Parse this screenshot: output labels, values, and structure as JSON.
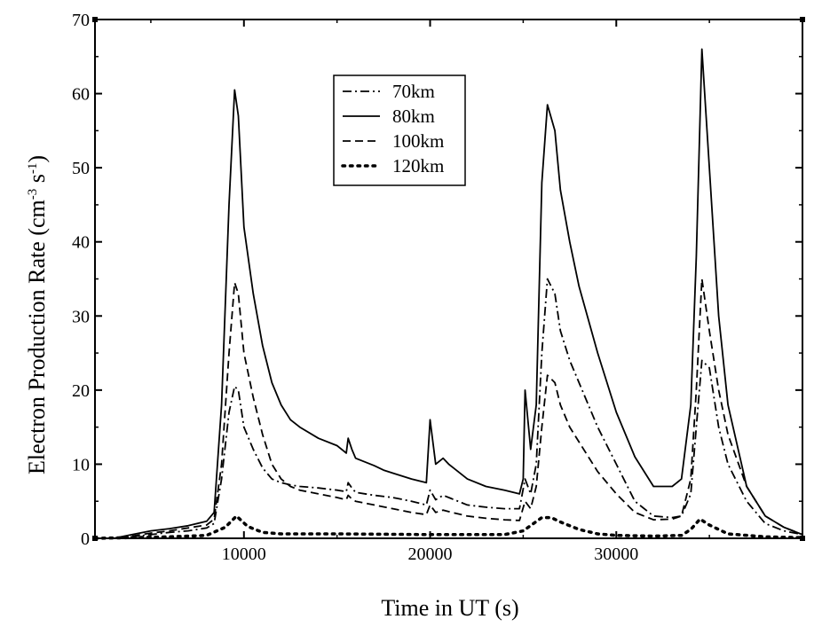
{
  "chart_data": {
    "type": "line",
    "title": "",
    "xlabel": "Time in UT (s)",
    "ylabel_main": "Electron Production Rate (cm",
    "ylabel_sup1": "-3",
    "ylabel_mid": " s",
    "ylabel_sup2": "-1",
    "ylabel_end": ")",
    "xlim": [
      2000,
      40000
    ],
    "ylim": [
      0,
      70
    ],
    "xticks": [
      10000,
      20000,
      30000
    ],
    "yticks": [
      0,
      10,
      20,
      30,
      40,
      50,
      60,
      70
    ],
    "xtick_labels": [
      "10000",
      "20000",
      "30000"
    ],
    "ytick_labels": [
      "0",
      "10",
      "20",
      "30",
      "40",
      "50",
      "60",
      "70"
    ],
    "legend_position": "top-center",
    "series": [
      {
        "name": "70km",
        "style": "dashdot",
        "x": [
          2000,
          3000,
          4000,
          5000,
          6000,
          7000,
          8000,
          8400,
          8800,
          9200,
          9500,
          9700,
          10000,
          10500,
          11000,
          11500,
          12000,
          12500,
          13000,
          14000,
          15000,
          15500,
          15600,
          15800,
          16000,
          17000,
          18000,
          19000,
          19800,
          20000,
          20300,
          20700,
          21000,
          22000,
          23000,
          24000,
          24800,
          25100,
          25400,
          25700,
          26000,
          26300,
          26700,
          27000,
          27500,
          28000,
          29000,
          30000,
          31000,
          32000,
          33000,
          33500,
          34000,
          34300,
          34600,
          35000,
          35500,
          36000,
          37000,
          38000,
          39000,
          40000
        ],
        "y": [
          0,
          0,
          0.2,
          0.5,
          0.8,
          1.0,
          1.4,
          2.0,
          8,
          17,
          20.5,
          20,
          15,
          12,
          9.5,
          8,
          7.5,
          7.2,
          7.0,
          6.8,
          6.5,
          6.3,
          7.5,
          6.8,
          6.2,
          5.8,
          5.5,
          5.0,
          4.5,
          6.5,
          5.2,
          5.8,
          5.5,
          4.5,
          4.2,
          4.0,
          4.0,
          8,
          6,
          10,
          25,
          35,
          33,
          28,
          24,
          21,
          15,
          10,
          5,
          3,
          2.8,
          3,
          6,
          15,
          24,
          23,
          15,
          10,
          5,
          2,
          1,
          0.5
        ]
      },
      {
        "name": "80km",
        "style": "solid",
        "x": [
          2000,
          3000,
          4000,
          5000,
          6000,
          7000,
          8000,
          8400,
          8800,
          9200,
          9500,
          9700,
          10000,
          10500,
          11000,
          11500,
          12000,
          12500,
          13000,
          14000,
          15000,
          15500,
          15600,
          15800,
          16000,
          17000,
          17500,
          18000,
          19000,
          19800,
          20000,
          20300,
          20700,
          21000,
          22000,
          23000,
          24000,
          24800,
          25000,
          25100,
          25400,
          25700,
          26000,
          26300,
          26700,
          27000,
          27500,
          28000,
          29000,
          30000,
          31000,
          32000,
          33000,
          33500,
          34000,
          34300,
          34600,
          35000,
          35500,
          36000,
          37000,
          38000,
          39000,
          40000
        ],
        "y": [
          0,
          0,
          0.5,
          1.0,
          1.3,
          1.7,
          2.3,
          3.5,
          18,
          45,
          60.5,
          57,
          42,
          33,
          26,
          21,
          18,
          16,
          15,
          13.5,
          12.5,
          11.5,
          13.5,
          12,
          10.8,
          9.8,
          9.2,
          8.8,
          8.0,
          7.5,
          16,
          10,
          10.8,
          10,
          8,
          7,
          6.5,
          6.0,
          8,
          20,
          12,
          18,
          48,
          58.5,
          55,
          47,
          40,
          34,
          25,
          17,
          11,
          7,
          7,
          8,
          18,
          38,
          66,
          50,
          30,
          18,
          7,
          3,
          1.5,
          0.5
        ]
      },
      {
        "name": "100km",
        "style": "dashed",
        "x": [
          2000,
          3000,
          4000,
          5000,
          6000,
          7000,
          8000,
          8400,
          8800,
          9200,
          9500,
          9700,
          10000,
          10500,
          11000,
          11500,
          12000,
          12500,
          13000,
          14000,
          15000,
          15500,
          15600,
          15800,
          16000,
          17000,
          18000,
          19000,
          19800,
          20000,
          20300,
          20700,
          21000,
          22000,
          23000,
          24000,
          24800,
          25100,
          25400,
          25700,
          26000,
          26300,
          26700,
          27000,
          27500,
          28000,
          29000,
          30000,
          31000,
          32000,
          33000,
          33500,
          34000,
          34300,
          34600,
          35000,
          35500,
          36000,
          37000,
          38000,
          39000,
          40000
        ],
        "y": [
          0,
          0,
          0.3,
          0.7,
          1.0,
          1.4,
          1.8,
          2.6,
          10,
          25,
          34.5,
          33,
          25,
          19,
          14,
          10,
          8,
          7,
          6.5,
          6,
          5.5,
          5.2,
          5.8,
          5.3,
          5.0,
          4.5,
          4.0,
          3.5,
          3.2,
          4.5,
          3.5,
          3.8,
          3.6,
          3.0,
          2.7,
          2.5,
          2.4,
          5,
          4,
          7,
          15,
          22,
          21,
          18,
          15,
          13,
          9,
          6,
          3.5,
          2.5,
          2.6,
          3,
          8,
          20,
          35,
          28,
          20,
          14,
          7,
          3,
          1.5,
          0.5
        ]
      },
      {
        "name": "120km",
        "style": "dotted",
        "x": [
          2000,
          4000,
          6000,
          8000,
          9000,
          9600,
          10200,
          11000,
          12000,
          15000,
          20000,
          24000,
          25000,
          26000,
          26500,
          27000,
          28000,
          29000,
          30000,
          32000,
          33500,
          34000,
          34500,
          35000,
          36000,
          38000,
          40000
        ],
        "y": [
          0,
          0.1,
          0.2,
          0.4,
          1.5,
          3.0,
          1.6,
          0.8,
          0.6,
          0.6,
          0.5,
          0.5,
          1.0,
          2.8,
          2.8,
          2.2,
          1.2,
          0.6,
          0.4,
          0.3,
          0.4,
          1.2,
          2.6,
          1.8,
          0.6,
          0.2,
          0.1
        ]
      }
    ]
  }
}
